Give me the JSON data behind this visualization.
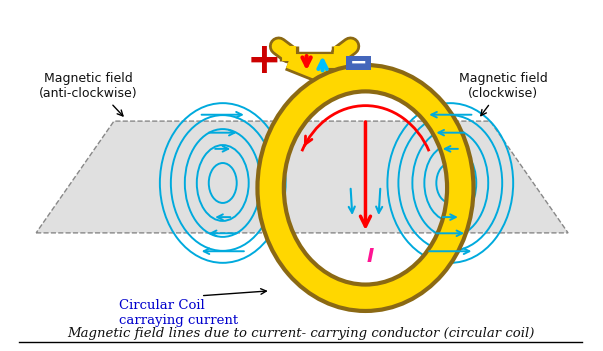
{
  "title": "Magnetic field lines due to current- carrying conductor (circular coil)",
  "coil_label": "Circular Coil\ncarraying current",
  "current_label": "I",
  "left_label": "Magnetic field\n(anti-clockwise)",
  "right_label": "Magnetic field\n(clockwise)",
  "bg_color": "#ffffff",
  "plane_color": "#e0e0e0",
  "coil_color": "#FFD700",
  "coil_edge_color": "#8B6914",
  "field_line_color": "#00AADD",
  "arrow_red": "#FF0000",
  "arrow_cyan": "#00BFFF",
  "current_arrow_color": "#FF0000",
  "plus_color": "#CC0000",
  "minus_color": "#4466BB",
  "text_color_blue": "#0000CC",
  "text_color_black": "#111111",
  "current_I_color": "#FF1493"
}
